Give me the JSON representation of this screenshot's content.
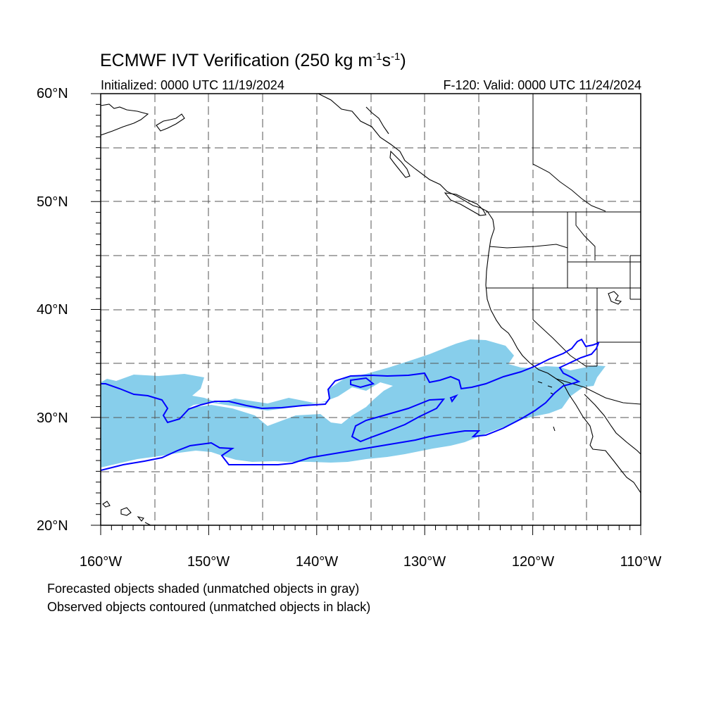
{
  "title": {
    "main": "ECMWF IVT Verification (250 kg m",
    "exp1": "-1",
    "mid": "s",
    "exp2": "-1",
    "close": ")"
  },
  "subtitle": {
    "left": "Initialized: 0000 UTC 11/19/2024",
    "right": "F-120: Valid: 0000 UTC 11/24/2024"
  },
  "axes": {
    "lat_labels": [
      "60°N",
      "50°N",
      "40°N",
      "30°N",
      "20°N"
    ],
    "lon_labels": [
      "160°W",
      "150°W",
      "140°W",
      "130°W",
      "120°W",
      "110°W"
    ],
    "lat_range": [
      20,
      60
    ],
    "lon_range": [
      -160,
      -110
    ],
    "grid_interval_deg": 5
  },
  "legend_notes": [
    "Forecasted objects shaded (unmatched objects in gray)",
    "Observed objects contoured (unmatched objects in black)"
  ],
  "colors": {
    "forecast_fill": "#87ceeb",
    "observed_contour": "#0000ff",
    "coastline": "#000000",
    "grid": "#555555"
  }
}
